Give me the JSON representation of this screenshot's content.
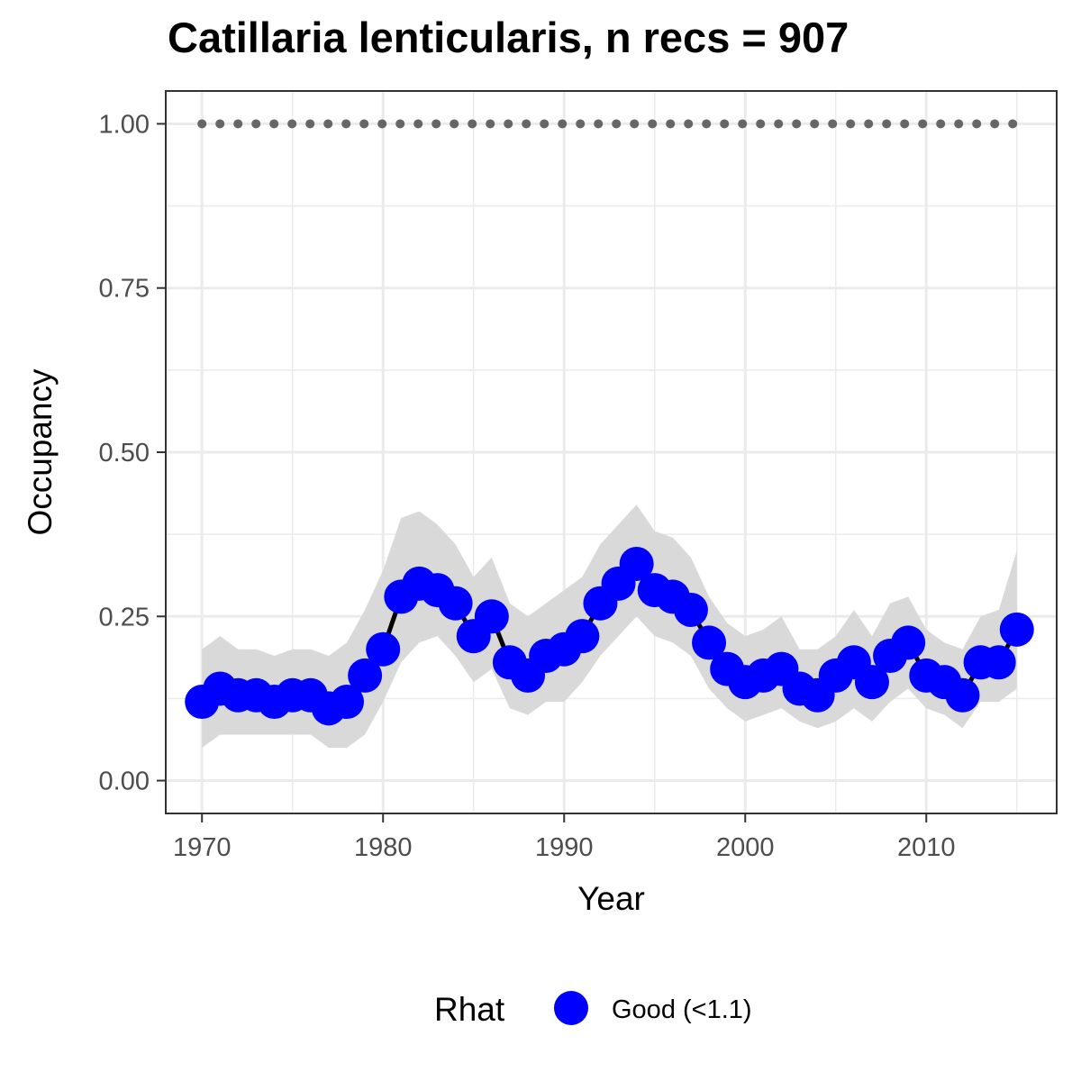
{
  "chart_data": {
    "type": "line",
    "title": "Catillaria lenticularis, n recs = 907",
    "xlabel": "Year",
    "ylabel": "Occupancy",
    "xlim": [
      1968,
      2017.2
    ],
    "ylim": [
      -0.05,
      1.05
    ],
    "x_ticks": [
      1970,
      1980,
      1990,
      2000,
      2010
    ],
    "x_tick_labels": [
      "1970",
      "1980",
      "1990",
      "2000",
      "2010"
    ],
    "y_ticks": [
      0,
      0.25,
      0.5,
      0.75,
      1.0
    ],
    "y_tick_labels": [
      "0.00",
      "0.25",
      "0.50",
      "0.75",
      "1.00"
    ],
    "grid": true,
    "legend": {
      "title": "Rhat",
      "position": "bottom",
      "entries": [
        {
          "label": "Good (<1.1)",
          "color": "#0000ff"
        }
      ]
    },
    "colors": {
      "points": "#0000ff",
      "line": "#000000",
      "ribbon": "#d9d9d9",
      "reference_line": "#666666",
      "grid": "#ebebeb",
      "panel_border": "#333333"
    },
    "reference_line": {
      "y": 1.0,
      "style": "dotted"
    },
    "x": [
      1970,
      1971,
      1972,
      1973,
      1974,
      1975,
      1976,
      1977,
      1978,
      1979,
      1980,
      1981,
      1982,
      1983,
      1984,
      1985,
      1986,
      1987,
      1988,
      1989,
      1990,
      1991,
      1992,
      1993,
      1994,
      1995,
      1996,
      1997,
      1998,
      1999,
      2000,
      2001,
      2002,
      2003,
      2004,
      2005,
      2006,
      2007,
      2008,
      2009,
      2010,
      2011,
      2012,
      2013,
      2014,
      2015
    ],
    "series": [
      {
        "name": "Good (<1.1)",
        "values": [
          0.12,
          0.14,
          0.13,
          0.13,
          0.12,
          0.13,
          0.13,
          0.11,
          0.12,
          0.16,
          0.2,
          0.28,
          0.3,
          0.29,
          0.27,
          0.22,
          0.25,
          0.18,
          0.16,
          0.19,
          0.2,
          0.22,
          0.27,
          0.3,
          0.33,
          0.29,
          0.28,
          0.26,
          0.21,
          0.17,
          0.15,
          0.16,
          0.17,
          0.14,
          0.13,
          0.16,
          0.18,
          0.15,
          0.19,
          0.21,
          0.16,
          0.15,
          0.13,
          0.18,
          0.18,
          0.23
        ],
        "lower": [
          0.05,
          0.07,
          0.07,
          0.07,
          0.07,
          0.07,
          0.07,
          0.05,
          0.05,
          0.07,
          0.12,
          0.18,
          0.21,
          0.22,
          0.19,
          0.15,
          0.17,
          0.11,
          0.1,
          0.12,
          0.12,
          0.15,
          0.19,
          0.22,
          0.25,
          0.22,
          0.21,
          0.19,
          0.14,
          0.11,
          0.09,
          0.1,
          0.11,
          0.09,
          0.08,
          0.09,
          0.11,
          0.09,
          0.12,
          0.14,
          0.11,
          0.1,
          0.08,
          0.12,
          0.12,
          0.14
        ],
        "upper": [
          0.2,
          0.22,
          0.2,
          0.2,
          0.19,
          0.2,
          0.2,
          0.19,
          0.21,
          0.26,
          0.32,
          0.4,
          0.41,
          0.39,
          0.36,
          0.31,
          0.34,
          0.27,
          0.25,
          0.27,
          0.29,
          0.31,
          0.36,
          0.39,
          0.42,
          0.38,
          0.37,
          0.34,
          0.28,
          0.24,
          0.22,
          0.23,
          0.25,
          0.2,
          0.2,
          0.22,
          0.26,
          0.22,
          0.27,
          0.28,
          0.23,
          0.21,
          0.2,
          0.25,
          0.26,
          0.35
        ]
      }
    ]
  }
}
